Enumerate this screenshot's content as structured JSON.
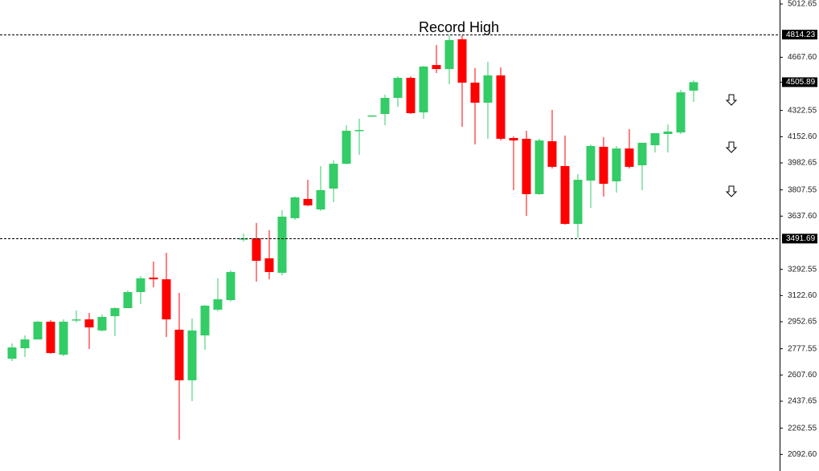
{
  "chart_data": {
    "type": "candlestick",
    "annotation": "Record High",
    "up_color": "#33cc66",
    "down_color": "#ff0000",
    "ylim": [
      1985,
      5038.7
    ],
    "yticks": [
      5012.65,
      {
        "value": 4667.6,
        "label": "4667.60"
      },
      4322.55,
      {
        "value": 4152.6,
        "label": "4152.60"
      },
      3982.65,
      3807.55,
      {
        "value": 3637.6,
        "label": "3637.60"
      },
      3292.55,
      {
        "value": 3122.6,
        "label": "3122.60"
      },
      2952.65,
      2777.55,
      {
        "value": 2607.6,
        "label": "2607.60"
      },
      2437.65,
      2262.55,
      {
        "value": 2092.6,
        "label": "2092.60"
      }
    ],
    "grid": false,
    "hlines": [
      4814.23,
      3491.69
    ],
    "last_price": 4505.89,
    "open": [
      2713,
      2781,
      2838,
      2953,
      2739,
      2965,
      2968,
      2896,
      2989,
      3041,
      3145,
      3239,
      3228,
      2901,
      2573,
      2864,
      3031,
      3093,
      3491,
      3494,
      3364,
      3270,
      3624,
      3749,
      3681,
      3816,
      3977,
      4193,
      4287,
      4300,
      4404,
      4534,
      4310,
      4617,
      4591,
      4784,
      4503,
      4373,
      4550,
      4144,
      4139,
      3780,
      4123,
      3962,
      3587,
      3868,
      4087,
      3863,
      4076,
      3967,
      4097,
      4170,
      4180,
      4451
    ],
    "high": [
      2812,
      2864,
      2958,
      2963,
      2968,
      3026,
      3010,
      3000,
      3046,
      3156,
      3249,
      3343,
      3400,
      3140,
      2974,
      3062,
      3234,
      3286,
      3525,
      3593,
      3546,
      3676,
      3764,
      3873,
      3962,
      3998,
      4227,
      4269,
      4292,
      4425,
      4544,
      4544,
      4612,
      4747,
      4810,
      4810,
      4597,
      4638,
      4602,
      4154,
      4191,
      4139,
      4326,
      4160,
      3910,
      4102,
      4149,
      4092,
      4201,
      4113,
      4175,
      4232,
      4456,
      4518
    ],
    "low": [
      2698,
      2724,
      2838,
      2745,
      2729,
      2948,
      2776,
      2890,
      2859,
      3041,
      3067,
      3176,
      2854,
      2188,
      2438,
      2771,
      3020,
      3083,
      3473,
      3213,
      3228,
      3254,
      3613,
      3702,
      3671,
      3728,
      3972,
      4035,
      4284,
      4227,
      4347,
      4300,
      4269,
      4565,
      4493,
      4217,
      4102,
      4139,
      4128,
      3806,
      3639,
      3775,
      3946,
      3582,
      3499,
      3691,
      3764,
      3790,
      3946,
      3806,
      4050,
      4050,
      4170,
      4378
    ],
    "close": [
      2786,
      2838,
      2953,
      2750,
      2953,
      2968,
      2916,
      2984,
      3041,
      3145,
      3234,
      3228,
      2968,
      2573,
      2896,
      3057,
      3098,
      3275,
      3493,
      3348,
      3275,
      3634,
      3759,
      3707,
      3806,
      3977,
      4191,
      4196,
      4290,
      4404,
      4534,
      4305,
      4607,
      4591,
      4779,
      4503,
      4373,
      4550,
      4139,
      4128,
      3780,
      4128,
      3957,
      3587,
      3873,
      4092,
      3847,
      4076,
      3957,
      4113,
      4175,
      4186,
      4440,
      4506
    ]
  }
}
